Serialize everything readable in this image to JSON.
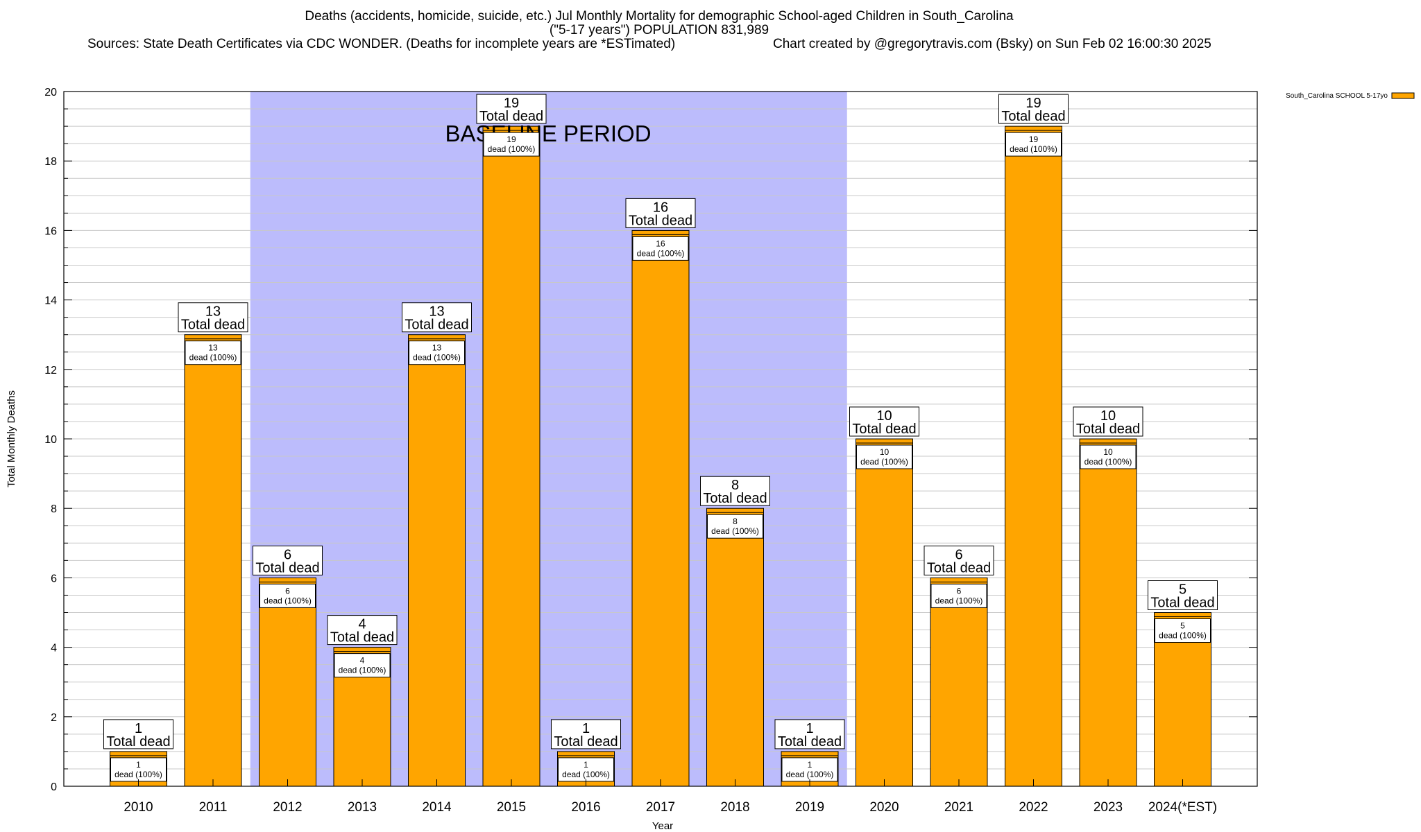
{
  "title_line1": "Deaths (accidents, homicide, suicide, etc.) Jul Monthly Mortality for demographic School-aged Children in South_Carolina",
  "title_line2": "(\"5-17 years\") POPULATION 831,989",
  "sources": "Sources: State Death Certificates via CDC WONDER. (Deaths for incomplete years are *ESTimated)",
  "credit": "Chart created by @gregorytravis.com (Bsky) on Sun Feb 02 16:00:30 2025",
  "colors": {
    "bar": "#ffa500",
    "baseline_band": "#bcbcfc",
    "grid": "#c8c8c8"
  },
  "chart_data": {
    "type": "bar",
    "xlabel": "Year",
    "ylabel": "Total Monthly Deaths",
    "ylim": [
      0,
      20
    ],
    "yticks": [
      0,
      2,
      4,
      6,
      8,
      10,
      12,
      14,
      16,
      18,
      20
    ],
    "grid": true,
    "legend": {
      "position": "top-right",
      "entries": [
        "South_Carolina SCHOOL 5-17yo"
      ]
    },
    "categories": [
      "2010",
      "2011",
      "2012",
      "2013",
      "2014",
      "2015",
      "2016",
      "2017",
      "2018",
      "2019",
      "2020",
      "2021",
      "2022",
      "2023",
      "2024(*EST)"
    ],
    "series": [
      {
        "name": "South_Carolina SCHOOL 5-17yo",
        "values": [
          1,
          13,
          6,
          4,
          13,
          19,
          1,
          16,
          8,
          1,
          10,
          6,
          19,
          10,
          5
        ]
      }
    ],
    "inner_label_suffix": "dead (100%)",
    "total_label_suffix": "Total dead",
    "annotation": {
      "text": "BASELINE PERIOD",
      "from_category": "2012",
      "to_category": "2019"
    }
  }
}
